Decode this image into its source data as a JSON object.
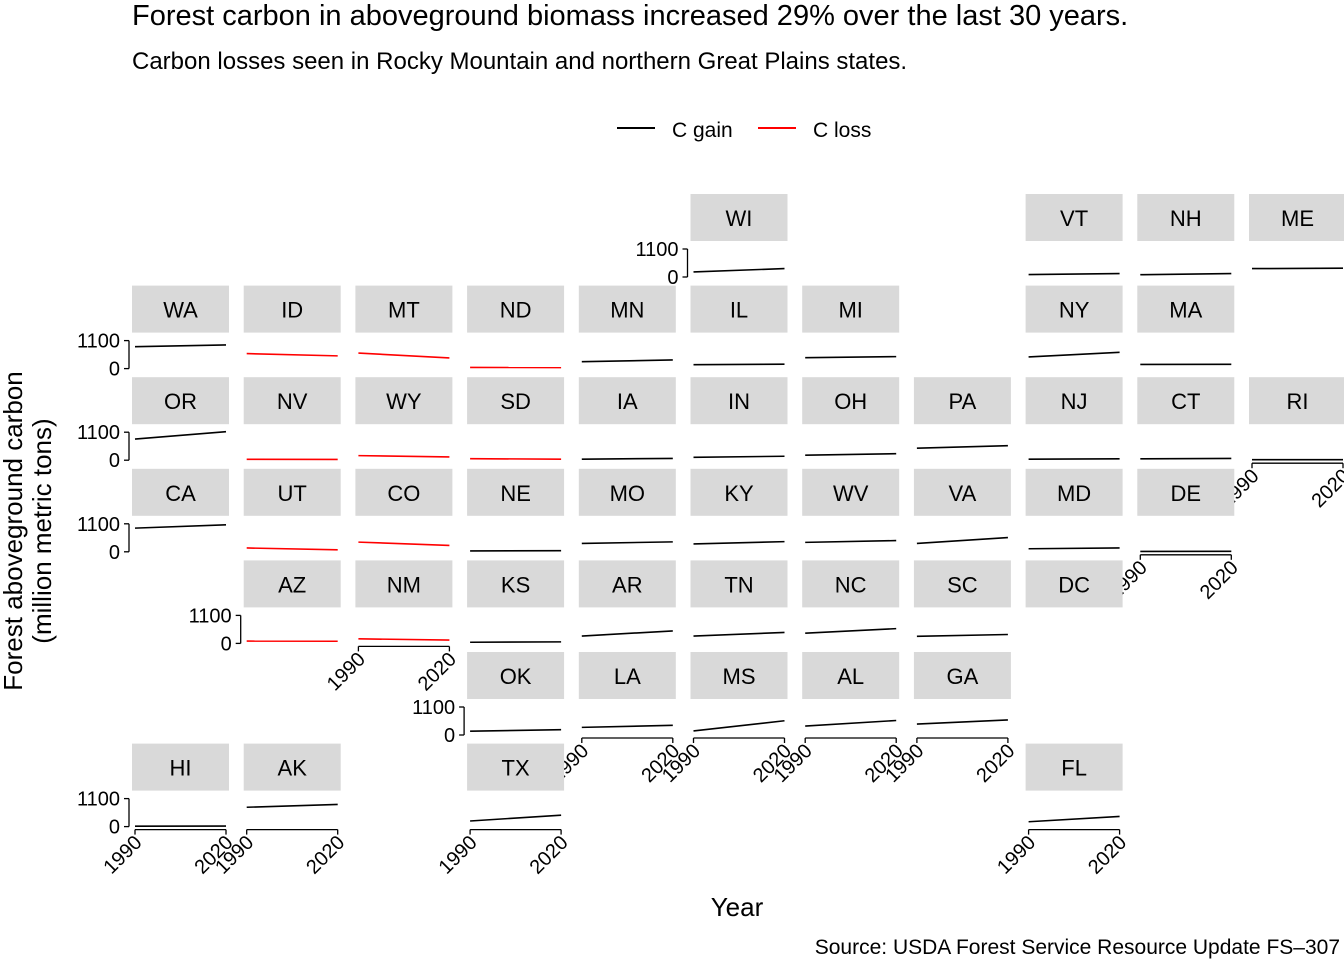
{
  "chart_data": {
    "type": "line",
    "title": "Forest carbon in aboveground biomass increased 29% over the last 30 years.",
    "subtitle": "Carbon losses seen in Rocky Mountain and northern Great Plains states.",
    "caption": "Source: USDA Forest Service Resource Update FS–307",
    "xlabel": "Year",
    "ylabel": [
      "Forest aboveground carbon",
      "(million metric tons)"
    ],
    "x_ticks": [
      "1990",
      "2020"
    ],
    "y_ticks": [
      "0",
      "1100"
    ],
    "xlim": [
      1990,
      2020
    ],
    "ylim": [
      0,
      1100
    ],
    "legend": {
      "position": "top",
      "entries": [
        {
          "label": "C gain",
          "color": "#000000"
        },
        {
          "label": "C loss",
          "color": "#ff0000"
        }
      ]
    },
    "strip_color": "#d9d9d9",
    "x": [
      1990,
      2020
    ],
    "panels": [
      {
        "state": "WI",
        "row": 0,
        "col": 5,
        "start": 200,
        "end": 330,
        "trend": "gain"
      },
      {
        "state": "VT",
        "row": 0,
        "col": 8,
        "start": 95,
        "end": 135,
        "trend": "gain"
      },
      {
        "state": "NH",
        "row": 0,
        "col": 9,
        "start": 90,
        "end": 135,
        "trend": "gain"
      },
      {
        "state": "ME",
        "row": 0,
        "col": 10,
        "start": 330,
        "end": 345,
        "trend": "gain"
      },
      {
        "state": "WA",
        "row": 1,
        "col": 0,
        "start": 860,
        "end": 930,
        "trend": "gain"
      },
      {
        "state": "ID",
        "row": 1,
        "col": 1,
        "start": 590,
        "end": 500,
        "trend": "loss"
      },
      {
        "state": "MT",
        "row": 1,
        "col": 2,
        "start": 610,
        "end": 420,
        "trend": "loss"
      },
      {
        "state": "ND",
        "row": 1,
        "col": 3,
        "start": 45,
        "end": 40,
        "trend": "loss"
      },
      {
        "state": "MN",
        "row": 1,
        "col": 4,
        "start": 270,
        "end": 340,
        "trend": "gain"
      },
      {
        "state": "IL",
        "row": 1,
        "col": 5,
        "start": 155,
        "end": 175,
        "trend": "gain"
      },
      {
        "state": "MI",
        "row": 1,
        "col": 6,
        "start": 430,
        "end": 470,
        "trend": "gain"
      },
      {
        "state": "NY",
        "row": 1,
        "col": 8,
        "start": 460,
        "end": 640,
        "trend": "gain"
      },
      {
        "state": "MA",
        "row": 1,
        "col": 9,
        "start": 165,
        "end": 170,
        "trend": "gain"
      },
      {
        "state": "OR",
        "row": 2,
        "col": 0,
        "start": 830,
        "end": 1120,
        "trend": "gain"
      },
      {
        "state": "NV",
        "row": 2,
        "col": 1,
        "start": 35,
        "end": 28,
        "trend": "loss"
      },
      {
        "state": "WY",
        "row": 2,
        "col": 2,
        "start": 180,
        "end": 130,
        "trend": "loss"
      },
      {
        "state": "SD",
        "row": 2,
        "col": 3,
        "start": 60,
        "end": 40,
        "trend": "loss"
      },
      {
        "state": "IA",
        "row": 2,
        "col": 4,
        "start": 40,
        "end": 70,
        "trend": "gain"
      },
      {
        "state": "IN",
        "row": 2,
        "col": 5,
        "start": 115,
        "end": 155,
        "trend": "gain"
      },
      {
        "state": "OH",
        "row": 2,
        "col": 6,
        "start": 195,
        "end": 255,
        "trend": "gain"
      },
      {
        "state": "PA",
        "row": 2,
        "col": 7,
        "start": 470,
        "end": 570,
        "trend": "gain"
      },
      {
        "state": "NJ",
        "row": 2,
        "col": 8,
        "start": 40,
        "end": 55,
        "trend": "gain"
      },
      {
        "state": "CT",
        "row": 2,
        "col": 9,
        "start": 55,
        "end": 70,
        "trend": "gain"
      },
      {
        "state": "RI",
        "row": 2,
        "col": 10,
        "start": 20,
        "end": 22,
        "trend": "gain"
      },
      {
        "state": "CA",
        "row": 3,
        "col": 0,
        "start": 930,
        "end": 1060,
        "trend": "gain"
      },
      {
        "state": "UT",
        "row": 3,
        "col": 1,
        "start": 150,
        "end": 80,
        "trend": "loss"
      },
      {
        "state": "CO",
        "row": 3,
        "col": 2,
        "start": 380,
        "end": 250,
        "trend": "loss"
      },
      {
        "state": "NE",
        "row": 3,
        "col": 3,
        "start": 35,
        "end": 45,
        "trend": "gain"
      },
      {
        "state": "MO",
        "row": 3,
        "col": 4,
        "start": 330,
        "end": 390,
        "trend": "gain"
      },
      {
        "state": "KY",
        "row": 3,
        "col": 5,
        "start": 310,
        "end": 400,
        "trend": "gain"
      },
      {
        "state": "WV",
        "row": 3,
        "col": 6,
        "start": 370,
        "end": 440,
        "trend": "gain"
      },
      {
        "state": "VA",
        "row": 3,
        "col": 7,
        "start": 330,
        "end": 560,
        "trend": "gain"
      },
      {
        "state": "MD",
        "row": 3,
        "col": 8,
        "start": 120,
        "end": 150,
        "trend": "gain"
      },
      {
        "state": "DE",
        "row": 3,
        "col": 9,
        "start": 15,
        "end": 18,
        "trend": "gain"
      },
      {
        "state": "AZ",
        "row": 4,
        "col": 1,
        "start": 90,
        "end": 85,
        "trend": "loss"
      },
      {
        "state": "NM",
        "row": 4,
        "col": 2,
        "start": 180,
        "end": 130,
        "trend": "loss"
      },
      {
        "state": "KS",
        "row": 4,
        "col": 3,
        "start": 45,
        "end": 60,
        "trend": "gain"
      },
      {
        "state": "AR",
        "row": 4,
        "col": 4,
        "start": 290,
        "end": 490,
        "trend": "gain"
      },
      {
        "state": "TN",
        "row": 4,
        "col": 5,
        "start": 290,
        "end": 430,
        "trend": "gain"
      },
      {
        "state": "NC",
        "row": 4,
        "col": 6,
        "start": 400,
        "end": 580,
        "trend": "gain"
      },
      {
        "state": "SC",
        "row": 4,
        "col": 7,
        "start": 280,
        "end": 350,
        "trend": "gain"
      },
      {
        "state": "DC",
        "row": 4,
        "col": 8,
        "start": null,
        "end": null,
        "trend": "gain"
      },
      {
        "state": "OK",
        "row": 5,
        "col": 3,
        "start": 150,
        "end": 210,
        "trend": "gain"
      },
      {
        "state": "LA",
        "row": 5,
        "col": 4,
        "start": 300,
        "end": 380,
        "trend": "gain"
      },
      {
        "state": "MS",
        "row": 5,
        "col": 5,
        "start": 160,
        "end": 560,
        "trend": "gain"
      },
      {
        "state": "AL",
        "row": 5,
        "col": 6,
        "start": 350,
        "end": 570,
        "trend": "gain"
      },
      {
        "state": "GA",
        "row": 5,
        "col": 7,
        "start": 430,
        "end": 590,
        "trend": "gain"
      },
      {
        "state": "HI",
        "row": 6,
        "col": 0,
        "start": 15,
        "end": 20,
        "trend": "gain"
      },
      {
        "state": "AK",
        "row": 6,
        "col": 1,
        "start": 760,
        "end": 870,
        "trend": "gain"
      },
      {
        "state": "TX",
        "row": 6,
        "col": 3,
        "start": 220,
        "end": 450,
        "trend": "gain"
      },
      {
        "state": "FL",
        "row": 6,
        "col": 8,
        "start": 190,
        "end": 400,
        "trend": "gain"
      }
    ],
    "y_axis_panels": [
      "WI",
      "WA",
      "OR",
      "CA",
      "AZ",
      "OK",
      "HI"
    ],
    "x_axis_panels": [
      "RI",
      "DE",
      "NM",
      "LA",
      "MS",
      "AL",
      "GA",
      "HI",
      "AK",
      "TX",
      "FL"
    ]
  }
}
